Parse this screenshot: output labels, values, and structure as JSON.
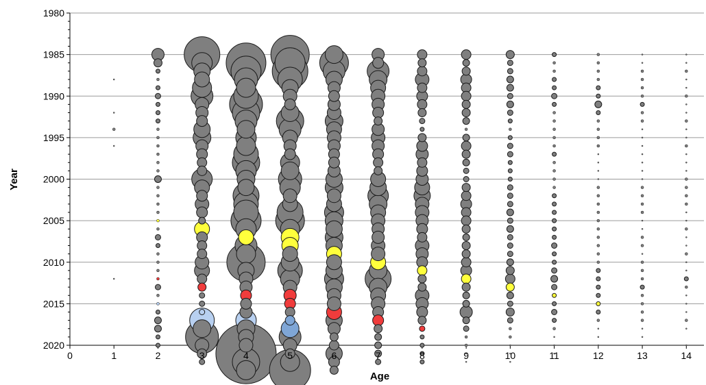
{
  "chart_data": {
    "type": "scatter",
    "subtype": "bubble",
    "title": "",
    "xlabel": "Age",
    "ylabel": "Year",
    "xlim": [
      0,
      14.4
    ],
    "ylim": [
      1980,
      2020
    ],
    "y_inverted": true,
    "x_ticks": [
      0,
      1,
      2,
      3,
      4,
      5,
      6,
      7,
      8,
      9,
      10,
      11,
      12,
      13,
      14
    ],
    "y_ticks": [
      1980,
      1985,
      1990,
      1995,
      2000,
      2005,
      2010,
      2015,
      2020
    ],
    "grid": "horizontal",
    "legend": "none",
    "colors": {
      "gray": "#7f7f7f",
      "yellow": "#ffff3c",
      "red": "#f03c3c",
      "lightblue": "#b8d0f0",
      "blue": "#7fa6d6"
    },
    "ages": [
      {
        "age": 1,
        "sizes": [
          0,
          0,
          0,
          1,
          0,
          0,
          0,
          1,
          0,
          2,
          0,
          1,
          0,
          0,
          0,
          0,
          0,
          0,
          0,
          0,
          0,
          0,
          0,
          0,
          0,
          0,
          0,
          1,
          0,
          0,
          0,
          0,
          0,
          0,
          0,
          0
        ],
        "colors": {}
      },
      {
        "age": 2,
        "sizes": [
          9,
          6,
          3,
          2,
          3,
          4,
          3,
          3,
          3,
          2,
          2,
          2,
          2,
          2,
          2,
          5,
          2,
          2,
          2,
          2,
          2,
          2,
          4,
          3,
          2,
          2,
          2,
          2,
          4,
          2,
          2,
          3,
          5,
          5,
          3,
          3
        ],
        "colors": {
          "2005": "yellow",
          "2012": "red",
          "2015": "lightblue"
        }
      },
      {
        "age": 3,
        "sizes": [
          26,
          15,
          12,
          11,
          14,
          16,
          10,
          9,
          8,
          12,
          13,
          9,
          8,
          7,
          7,
          15,
          11,
          8,
          10,
          8,
          5,
          11,
          8,
          7,
          7,
          10,
          11,
          7,
          6,
          4,
          4,
          4,
          18,
          13,
          24,
          10,
          7,
          4
        ],
        "colors": {
          "2006": "yellow",
          "2013": "red",
          "2016": "lightblue",
          "2017": "lightblue"
        }
      },
      {
        "age": 4,
        "sizes": [
          0,
          29,
          22,
          17,
          14,
          18,
          24,
          20,
          16,
          13,
          15,
          14,
          18,
          20,
          15,
          13,
          12,
          19,
          18,
          18,
          22,
          15,
          11,
          16,
          14,
          28,
          12,
          10,
          9,
          8,
          8,
          9,
          15,
          13,
          11,
          10,
          44,
          20,
          14
        ],
        "colors": {
          "2007": "yellow",
          "2014": "red",
          "2017": "lightblue"
        }
      },
      {
        "age": 5,
        "sizes": [
          28,
          22,
          26,
          18,
          12,
          10,
          8,
          13,
          20,
          16,
          11,
          9,
          8,
          14,
          13,
          17,
          15,
          10,
          11,
          19,
          21,
          14,
          13,
          12,
          11,
          13,
          18,
          14,
          10,
          9,
          8,
          7,
          7,
          13,
          16,
          10,
          7,
          14,
          30
        ],
        "colors": {
          "2007": "yellow",
          "2008": "yellow",
          "2014": "red",
          "2015": "red",
          "2017": "blue",
          "2018": "blue"
        }
      },
      {
        "age": 6,
        "sizes": [
          13,
          21,
          16,
          12,
          9,
          8,
          9,
          10,
          13,
          11,
          10,
          9,
          8,
          8,
          9,
          12,
          13,
          10,
          11,
          14,
          13,
          12,
          13,
          12,
          11,
          11,
          12,
          14,
          12,
          10,
          10,
          11,
          12,
          9,
          6,
          7,
          12,
          8,
          6
        ],
        "colors": {
          "2009": "yellow",
          "2016": "red"
        }
      },
      {
        "age": 7,
        "sizes": [
          9,
          8,
          16,
          13,
          11,
          10,
          9,
          8,
          6,
          9,
          10,
          9,
          8,
          7,
          6,
          11,
          12,
          15,
          13,
          11,
          10,
          9,
          9,
          10,
          10,
          11,
          13,
          19,
          13,
          11,
          10,
          8,
          8,
          6,
          5,
          5,
          5,
          4
        ],
        "colors": {
          "2010": "yellow",
          "2017": "red"
        }
      },
      {
        "age": 8,
        "sizes": [
          7,
          6,
          7,
          10,
          7,
          8,
          7,
          6,
          4,
          3,
          6,
          8,
          9,
          7,
          8,
          9,
          11,
          12,
          10,
          10,
          9,
          8,
          7,
          10,
          9,
          8,
          7,
          6,
          6,
          10,
          9,
          8,
          6,
          4,
          3,
          3,
          3,
          3
        ],
        "colors": {
          "2011": "yellow",
          "2018": "red"
        }
      },
      {
        "age": 9,
        "sizes": [
          7,
          5,
          6,
          8,
          7,
          7,
          6,
          6,
          5,
          2,
          5,
          7,
          6,
          5,
          4,
          4,
          6,
          7,
          8,
          7,
          7,
          6,
          5,
          6,
          6,
          7,
          8,
          7,
          6,
          5,
          5,
          9,
          5,
          4,
          2,
          2,
          1,
          1
        ],
        "colors": {
          "2012": "yellow"
        }
      },
      {
        "age": 10,
        "sizes": [
          6,
          4,
          4,
          5,
          5,
          4,
          5,
          4,
          3,
          2,
          3,
          4,
          4,
          3,
          3,
          3,
          4,
          4,
          4,
          5,
          4,
          5,
          4,
          4,
          4,
          5,
          6,
          7,
          6,
          5,
          4,
          6,
          4,
          2,
          2,
          1,
          1,
          1
        ],
        "colors": {
          "2013": "yellow"
        }
      },
      {
        "age": 11,
        "sizes": [
          3,
          2,
          2,
          3,
          3,
          4,
          3,
          2,
          2,
          2,
          2,
          2,
          3,
          2,
          2,
          2,
          2,
          3,
          3,
          3,
          3,
          3,
          3,
          4,
          3,
          3,
          4,
          5,
          4,
          3,
          3,
          4,
          3,
          2,
          1,
          1,
          1,
          0
        ],
        "colors": {
          "2014": "yellow"
        }
      },
      {
        "age": 12,
        "sizes": [
          2,
          2,
          2,
          2,
          3,
          3,
          5,
          3,
          2,
          2,
          2,
          2,
          1,
          1,
          1,
          1,
          2,
          2,
          2,
          2,
          2,
          2,
          2,
          2,
          2,
          2,
          3,
          3,
          3,
          3,
          3,
          3,
          2,
          1,
          1,
          1,
          0,
          0
        ],
        "colors": {
          "2015": "yellow"
        }
      },
      {
        "age": 13,
        "sizes": [
          1,
          1,
          2,
          2,
          2,
          2,
          3,
          2,
          2,
          1,
          1,
          1,
          1,
          1,
          1,
          1,
          2,
          2,
          2,
          2,
          1,
          1,
          2,
          2,
          1,
          2,
          2,
          2,
          3,
          2,
          2,
          2,
          2,
          1,
          1,
          0,
          0,
          0
        ],
        "colors": {}
      },
      {
        "age": 14,
        "sizes": [
          1,
          1,
          2,
          1,
          1,
          2,
          1,
          1,
          2,
          1,
          1,
          2,
          1,
          1,
          1,
          2,
          2,
          2,
          2,
          1,
          1,
          2,
          1,
          1,
          2,
          1,
          1,
          3,
          2,
          1,
          1,
          1,
          2,
          1,
          0,
          1,
          0,
          0
        ],
        "colors": {}
      }
    ]
  }
}
